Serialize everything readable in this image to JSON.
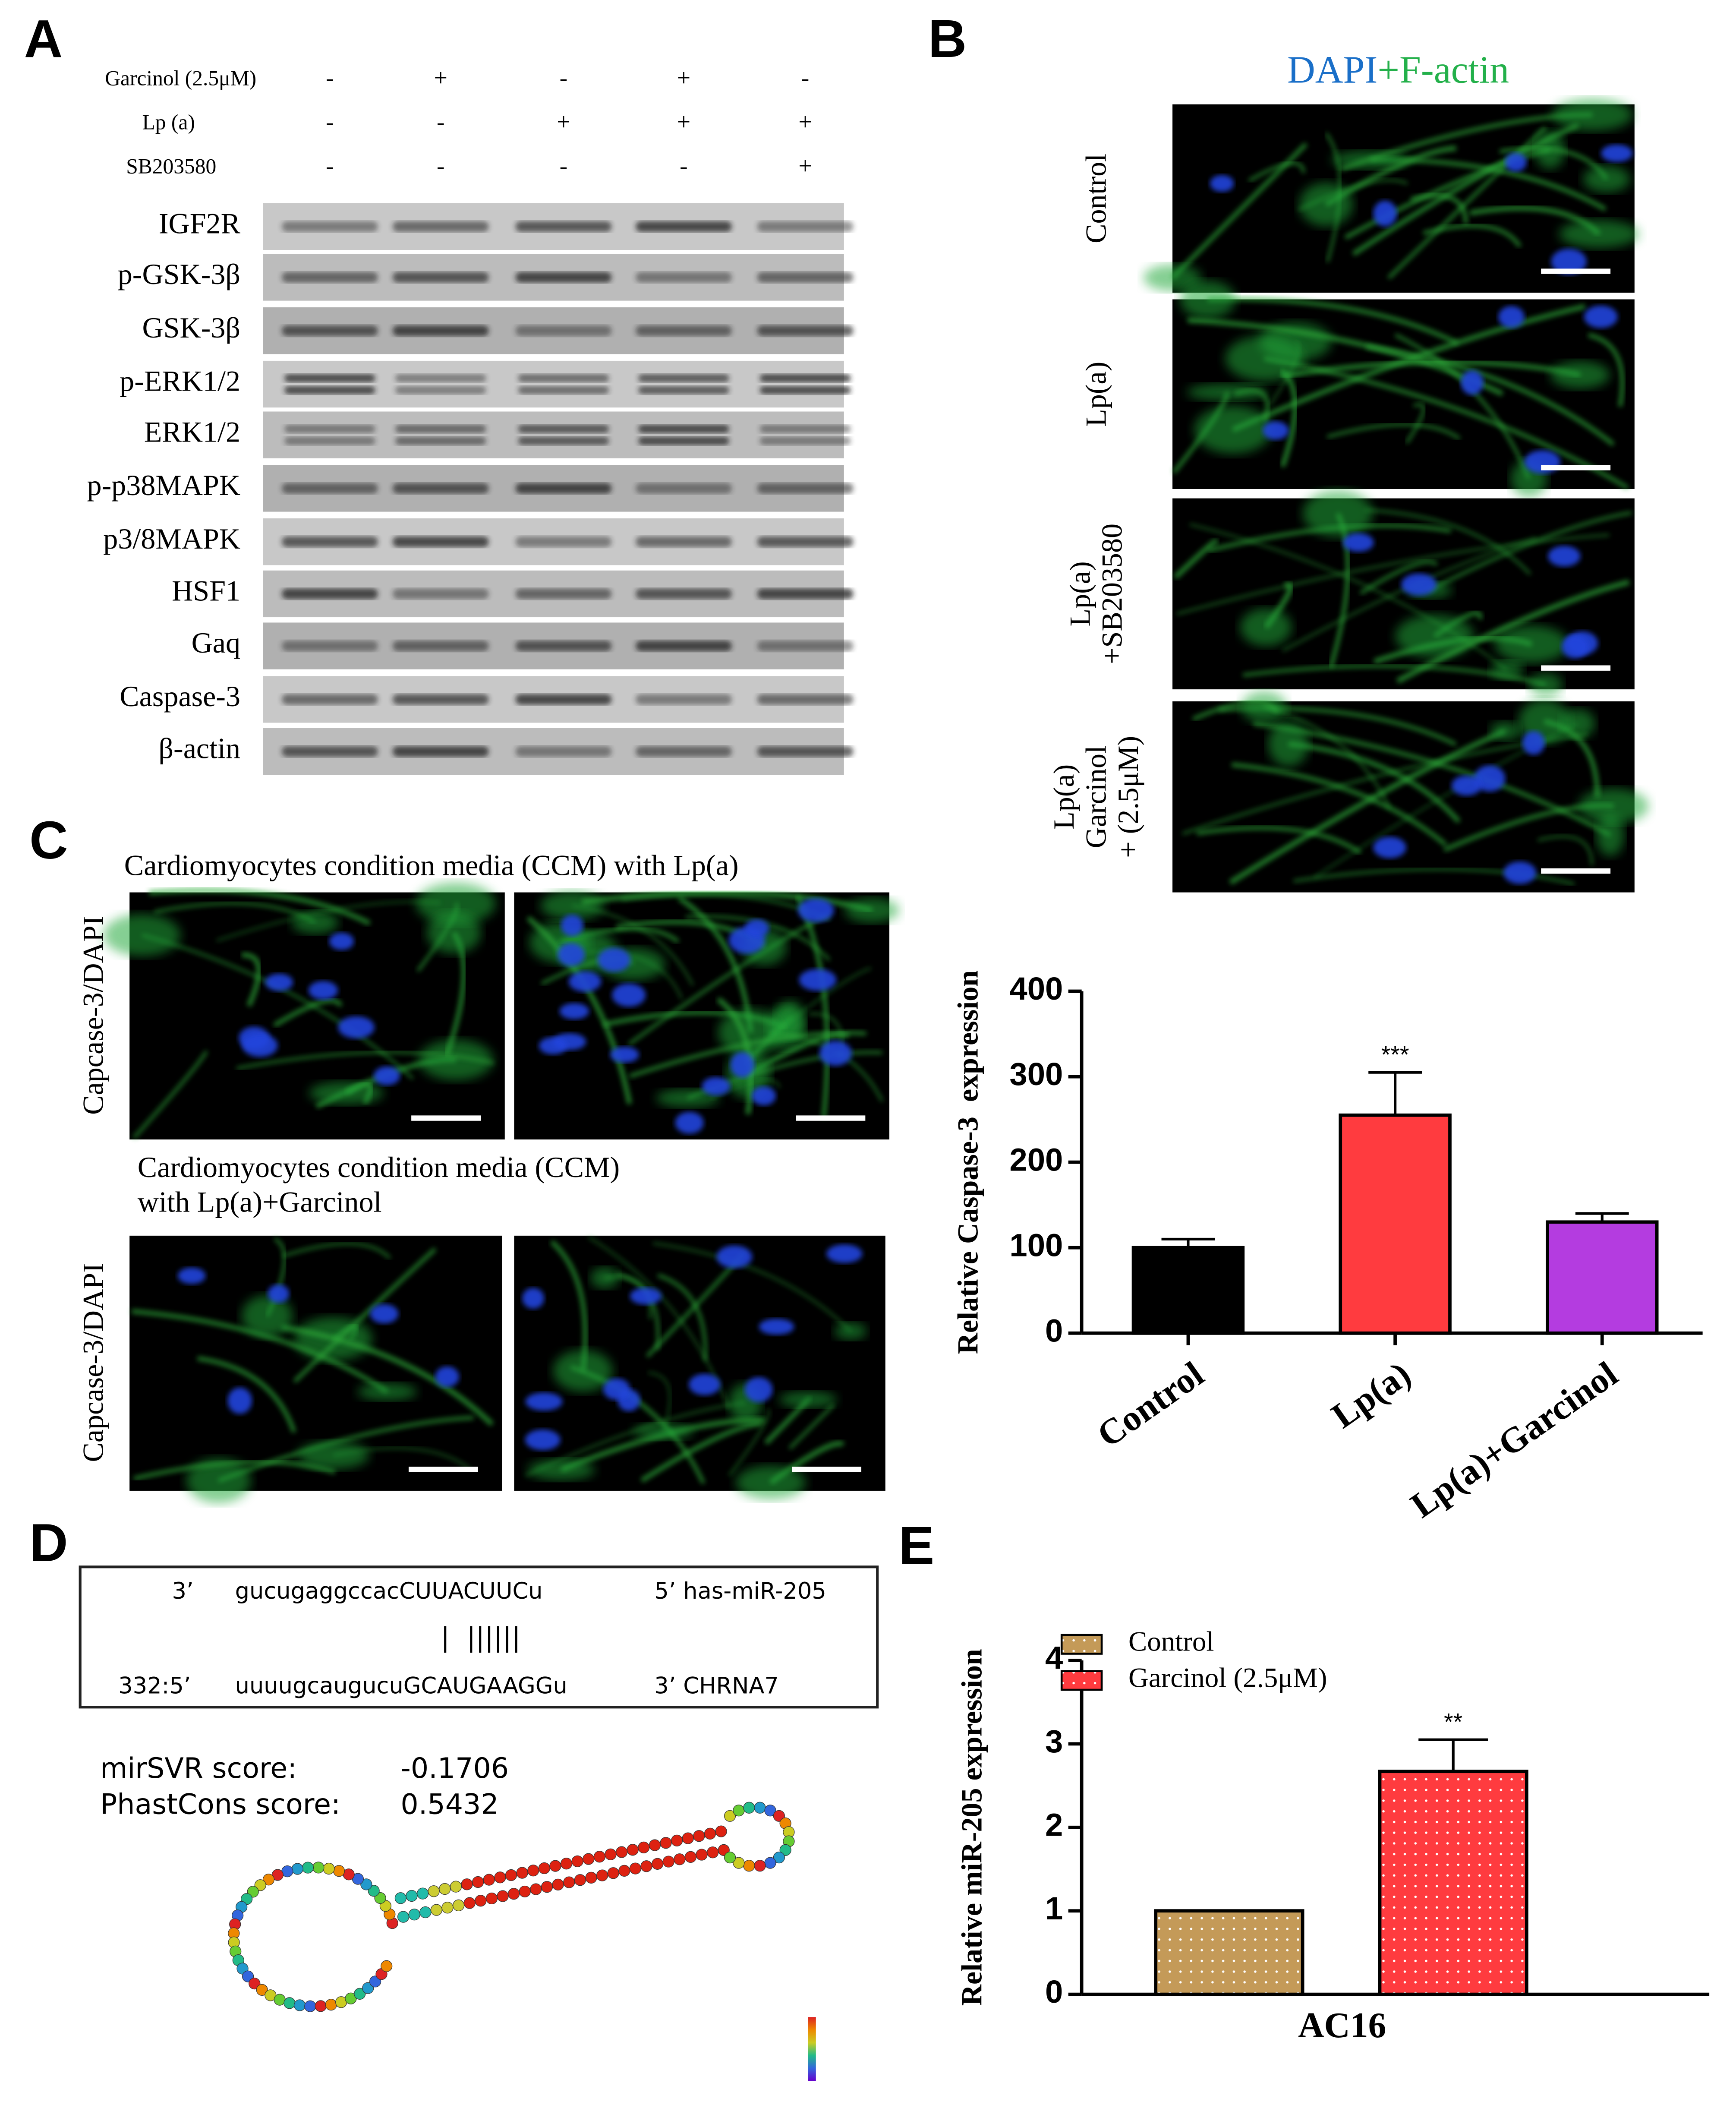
{
  "panel_labels": [
    "A",
    "B",
    "C",
    "D",
    "E"
  ],
  "panel_a": {
    "treatments": [
      {
        "label": "Garcinol (2.5μM)",
        "signs": [
          "-",
          "+",
          "-",
          "+",
          "-"
        ]
      },
      {
        "label": "Lp (a)",
        "signs": [
          "-",
          "-",
          "+",
          "+",
          "+"
        ]
      },
      {
        "label": "SB203580",
        "signs": [
          "-",
          "-",
          "-",
          "-",
          "+"
        ]
      }
    ],
    "proteins": [
      "IGF2R",
      "p-GSK-3β",
      "GSK-3β",
      "p-ERK1/2",
      "ERK1/2",
      "p-p38MAPK",
      "p3/8MAPK",
      "HSF1",
      "Gaq",
      "Caspase-3",
      "β-actin"
    ]
  },
  "panel_b": {
    "title_parts": [
      "DAPI",
      "+F-actin"
    ],
    "rows": [
      [
        "Control"
      ],
      [
        "Lp(a)"
      ],
      [
        "Lp(a)",
        "+SB203580"
      ],
      [
        "Lp(a)",
        "Garcinol",
        "+ (2.5μM)"
      ]
    ]
  },
  "panel_c": {
    "captions": [
      [
        "Cardiomyocytes condition media (CCM) with Lp(a)"
      ],
      [
        "Cardiomyocytes condition media (CCM)",
        "with Lp(a)+Garcinol"
      ]
    ],
    "stain_labels": [
      "Capcase-3/DAPI",
      "Capcase-3/DAPI"
    ]
  },
  "panel_d": {
    "alignment": {
      "mirna": {
        "end": "3’",
        "seq": "gucugaggccacCUUACUUCu",
        "tail": "5’ has-miR-205"
      },
      "pairing": "|  ||||||",
      "target": {
        "end": "332:5’",
        "seq": "uuuugcaugucuGCAUGAAGGu",
        "tail": "3’ CHRNA7"
      }
    },
    "scores": [
      {
        "label": "mirSVR score:",
        "value": -0.1706
      },
      {
        "label": "PhastCons score:",
        "value": 0.5432
      }
    ]
  },
  "chart_data": [
    {
      "type": "bar",
      "ylabel": "Relative Caspase-3  expression",
      "categories": [
        "Control",
        "Lp(a)",
        "Lp(a)+Garcinol"
      ],
      "values": [
        100,
        255,
        130
      ],
      "errors": [
        10,
        50,
        10
      ],
      "colors": [
        "#000000",
        "#ff3b3f",
        "#b43ce0"
      ],
      "significance": [
        null,
        "***",
        null
      ],
      "ylim": [
        0,
        400
      ],
      "yticks": [
        0,
        100,
        200,
        300,
        400
      ]
    },
    {
      "type": "grouped_bar",
      "ylabel": "Relative miR-205 expression",
      "categories": [
        "AC16"
      ],
      "series": [
        {
          "name": "Control",
          "color": "#c49a58",
          "values": [
            1.0
          ],
          "errors": [
            0
          ]
        },
        {
          "name": "Garcinol (2.5μM)",
          "color": "#ff3b3f",
          "values": [
            2.67
          ],
          "errors": [
            0.38
          ],
          "significance": [
            "**"
          ]
        }
      ],
      "legend": "upper left",
      "ylim": [
        0,
        4
      ],
      "yticks": [
        0,
        1,
        2,
        3,
        4
      ]
    }
  ]
}
